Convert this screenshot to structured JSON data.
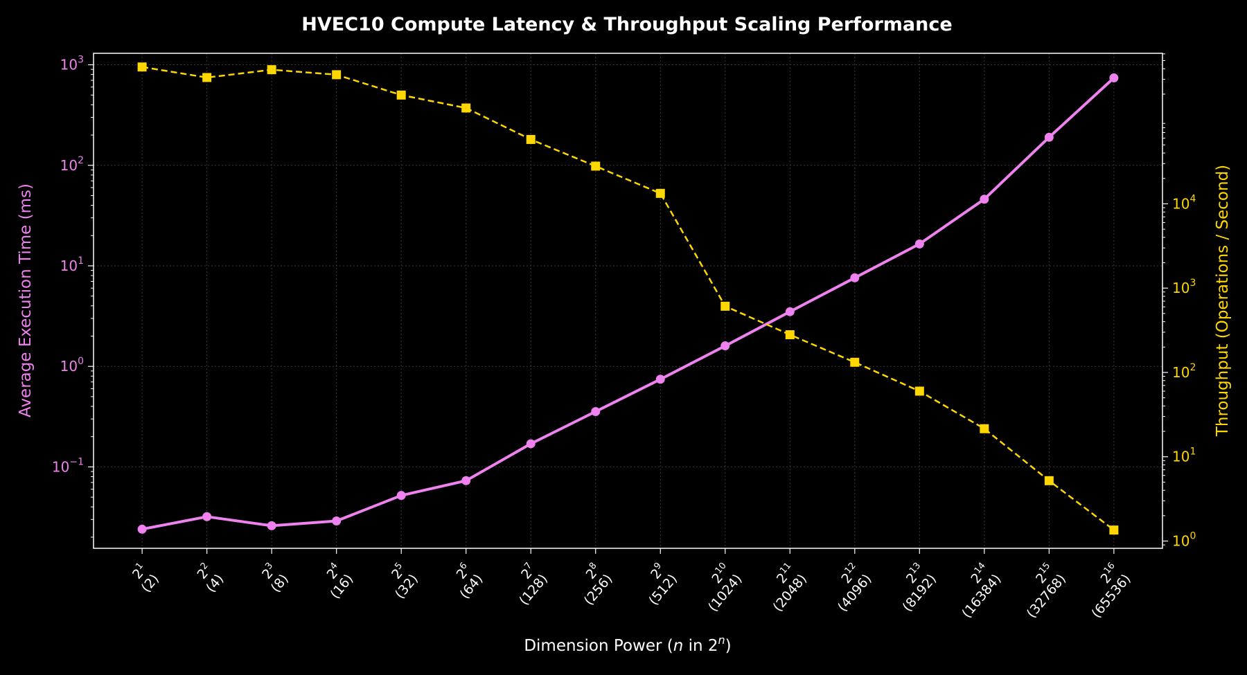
{
  "chart_data": {
    "type": "line",
    "title": "HVEC10 Compute Latency & Throughput Scaling Performance",
    "xlabel": {
      "prefix": "Dimension Power (",
      "var": "n",
      "mid": " in 2",
      "sup": "n",
      "suffix": ")"
    },
    "ylabel_left": "Average Execution Time (ms)",
    "ylabel_right": "Throughput (Operations / Second)",
    "x": [
      1,
      2,
      3,
      4,
      5,
      6,
      7,
      8,
      9,
      10,
      11,
      12,
      13,
      14,
      15,
      16
    ],
    "xtick_labels": [
      {
        "base": "2",
        "exp": "1",
        "value": "(2)"
      },
      {
        "base": "2",
        "exp": "2",
        "value": "(4)"
      },
      {
        "base": "2",
        "exp": "3",
        "value": "(8)"
      },
      {
        "base": "2",
        "exp": "4",
        "value": "(16)"
      },
      {
        "base": "2",
        "exp": "5",
        "value": "(32)"
      },
      {
        "base": "2",
        "exp": "6",
        "value": "(64)"
      },
      {
        "base": "2",
        "exp": "7",
        "value": "(128)"
      },
      {
        "base": "2",
        "exp": "8",
        "value": "(256)"
      },
      {
        "base": "2",
        "exp": "9",
        "value": "(512)"
      },
      {
        "base": "2",
        "exp": "10",
        "value": "(1024)"
      },
      {
        "base": "2",
        "exp": "11",
        "value": "(2048)"
      },
      {
        "base": "2",
        "exp": "12",
        "value": "(4096)"
      },
      {
        "base": "2",
        "exp": "13",
        "value": "(8192)"
      },
      {
        "base": "2",
        "exp": "14",
        "value": "(16384)"
      },
      {
        "base": "2",
        "exp": "15",
        "value": "(32768)"
      },
      {
        "base": "2",
        "exp": "16",
        "value": "(65536)"
      }
    ],
    "left_axis": {
      "scale": "log",
      "ylim": [
        0.0155,
        1300
      ],
      "ticks": [
        {
          "value": 0.1,
          "base": "10",
          "exp": "−1"
        },
        {
          "value": 1,
          "base": "10",
          "exp": "0"
        },
        {
          "value": 10,
          "base": "10",
          "exp": "1"
        },
        {
          "value": 100,
          "base": "10",
          "exp": "2"
        },
        {
          "value": 1000,
          "base": "10",
          "exp": "3"
        }
      ]
    },
    "right_axis": {
      "scale": "log",
      "ylim": [
        0.82,
        610000
      ],
      "ticks": [
        {
          "value": 1,
          "base": "10",
          "exp": "0"
        },
        {
          "value": 10,
          "base": "10",
          "exp": "1"
        },
        {
          "value": 100,
          "base": "10",
          "exp": "2"
        },
        {
          "value": 1000,
          "base": "10",
          "exp": "3"
        },
        {
          "value": 10000,
          "base": "10",
          "exp": "4"
        }
      ]
    },
    "series": [
      {
        "axis": "left",
        "style": "solid",
        "marker": "circle",
        "color": "#EE82EE",
        "values": [
          0.024,
          0.032,
          0.026,
          0.029,
          0.052,
          0.073,
          0.17,
          0.355,
          0.745,
          1.6,
          3.5,
          7.6,
          16.5,
          46,
          190,
          740
        ]
      },
      {
        "axis": "right",
        "style": "dashed",
        "marker": "square",
        "color": "#FFD700",
        "values": [
          420000,
          315000,
          390000,
          340000,
          195000,
          137000,
          58000,
          28000,
          13300,
          610,
          280,
          132,
          60,
          21.5,
          5.2,
          1.35
        ]
      }
    ],
    "grid": true,
    "colors": {
      "background": "#000000",
      "axes": "#ffffff",
      "left": "#EE82EE",
      "right": "#FFD700",
      "grid": "#3a3a3a"
    }
  }
}
